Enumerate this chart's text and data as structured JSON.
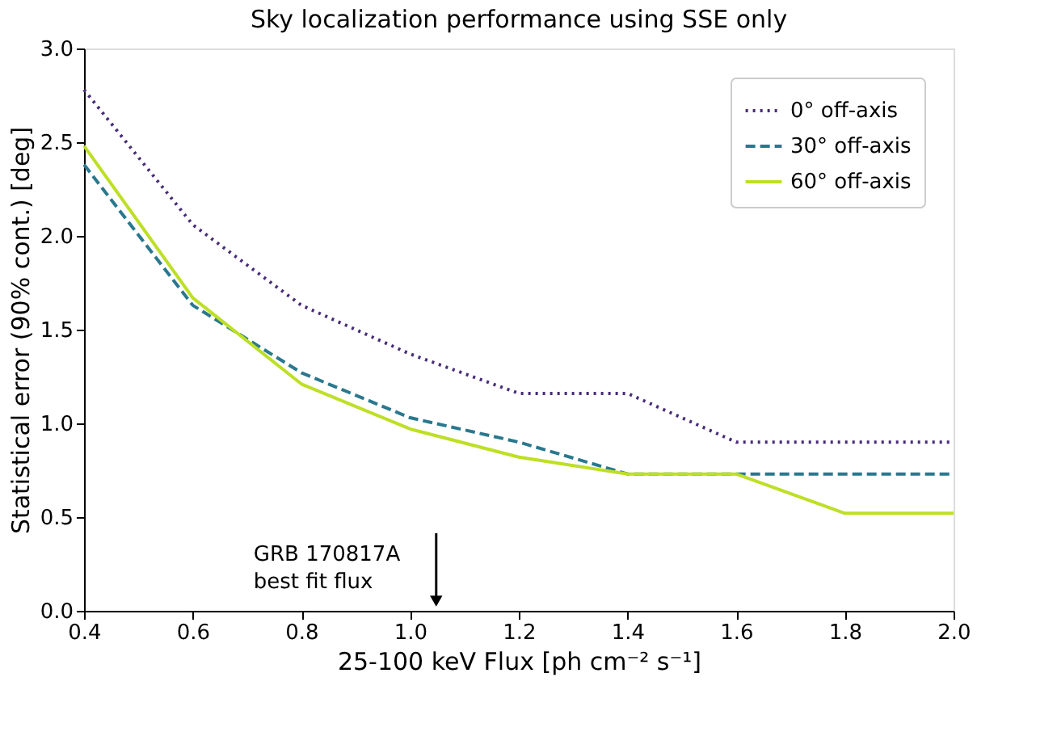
{
  "chart_data": {
    "type": "line",
    "title": "Sky localization performance using SSE only",
    "xlabel": "25-100 keV Flux  [ph cm⁻² s⁻¹]",
    "ylabel": "Statistical error (90% cont.) [deg]",
    "x": [
      0.4,
      0.6,
      0.8,
      1.0,
      1.2,
      1.4,
      1.6,
      1.8,
      2.0
    ],
    "series": [
      {
        "name": "0° off-axis",
        "color": "#472c7a",
        "line_style": "dotted",
        "values": [
          2.78,
          2.06,
          1.63,
          1.37,
          1.16,
          1.16,
          0.9,
          0.9,
          0.9
        ]
      },
      {
        "name": "30° off-axis",
        "color": "#2a788e",
        "line_style": "dashed",
        "values": [
          2.38,
          1.63,
          1.27,
          1.03,
          0.9,
          0.73,
          0.73,
          0.73,
          0.73
        ]
      },
      {
        "name": "60° off-axis",
        "color": "#bddf26",
        "line_style": "solid",
        "values": [
          2.48,
          1.67,
          1.21,
          0.97,
          0.82,
          0.73,
          0.73,
          0.52,
          0.52
        ]
      }
    ],
    "xlim": [
      0.4,
      2.0
    ],
    "xticks": [
      0.4,
      0.6,
      0.8,
      {
        "value": 1.0,
        "label": "1.0"
      },
      1.2,
      1.4,
      1.6,
      1.8,
      {
        "value": 2.0,
        "label": "2.0"
      }
    ],
    "ylim": [
      0,
      3.0
    ],
    "yticks": [
      {
        "value": 0,
        "label": "0.0"
      },
      0.5,
      {
        "value": 1,
        "label": "1.0"
      },
      1.5,
      {
        "value": 2,
        "label": "2.0"
      },
      2.5,
      {
        "value": 3,
        "label": "3.0"
      }
    ],
    "annotations": [
      "GRB 170817A\nbest fit flux"
    ],
    "legend": "top right",
    "grid": false,
    "marker": "none"
  }
}
